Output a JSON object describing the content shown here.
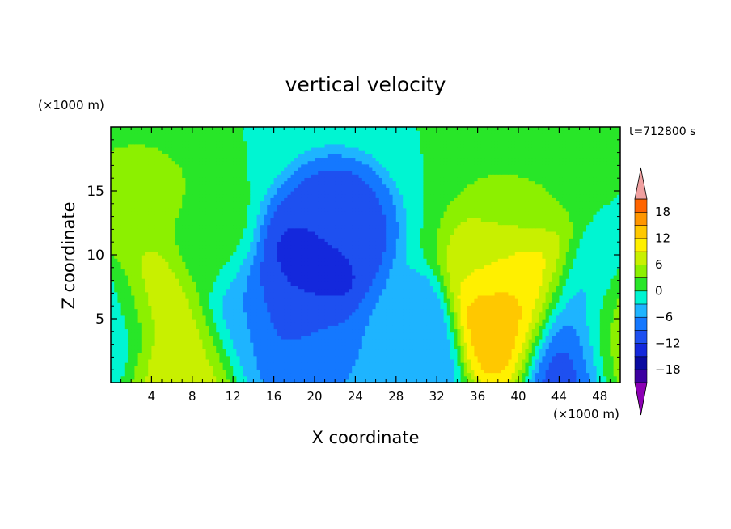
{
  "chart_data": {
    "type": "heatmap",
    "title": "vertical velocity",
    "time_label": "t=712800 s",
    "xlabel": "X coordinate",
    "ylabel": "Z coordinate",
    "x_unit": "(×1000 m)",
    "y_unit": "(×1000 m)",
    "xlim": [
      0,
      50
    ],
    "ylim": [
      0,
      20
    ],
    "x_ticks": [
      "4",
      "8",
      "12",
      "16",
      "20",
      "24",
      "28",
      "32",
      "36",
      "40",
      "44",
      "48"
    ],
    "y_ticks": [
      "5",
      "10",
      "15"
    ],
    "colorbar": {
      "levels": [
        -21,
        -18,
        -15,
        -12,
        -9,
        -6,
        -3,
        0,
        3,
        6,
        9,
        12,
        15,
        18,
        21
      ],
      "tick_labels": [
        "18",
        "12",
        "6",
        "0",
        "−6",
        "−12",
        "−18"
      ],
      "colors": [
        "#8c00b4",
        "#3c00a0",
        "#0a0aa0",
        "#1428dc",
        "#1e50f0",
        "#1478ff",
        "#1eb4ff",
        "#00f5d2",
        "#28e628",
        "#8cf000",
        "#c8f000",
        "#fff000",
        "#ffc800",
        "#ff9600",
        "#ff6400",
        "#f03214",
        "#c80a0a",
        "#f0a0a0"
      ],
      "range": [
        -21,
        21
      ],
      "extends": "both"
    },
    "features": [
      {
        "x": 20,
        "z": 9,
        "value": -14
      },
      {
        "x": 22,
        "z": 12,
        "value": -11
      },
      {
        "x": 17,
        "z": 6,
        "value": -12
      },
      {
        "x": 19,
        "z": 3.5,
        "value": -8
      },
      {
        "x": 29,
        "z": 3,
        "value": -6
      },
      {
        "x": 13,
        "z": 5,
        "value": -5
      },
      {
        "x": 39,
        "z": 5,
        "value": 15
      },
      {
        "x": 41,
        "z": 7.5,
        "value": 12
      },
      {
        "x": 38.5,
        "z": 10,
        "value": 8
      },
      {
        "x": 40,
        "z": 15,
        "value": 3
      },
      {
        "x": 45,
        "z": 3,
        "value": -13
      },
      {
        "x": 46,
        "z": 6,
        "value": -5
      },
      {
        "x": 49,
        "z": 4,
        "value": 8
      },
      {
        "x": 4,
        "z": 7,
        "value": 11
      },
      {
        "x": 2.5,
        "z": 13,
        "value": 5
      },
      {
        "x": 7.5,
        "z": 2.5,
        "value": 8
      },
      {
        "x": 1,
        "z": 6,
        "value": -4
      },
      {
        "x": 9,
        "z": 10,
        "value": 1
      }
    ]
  }
}
